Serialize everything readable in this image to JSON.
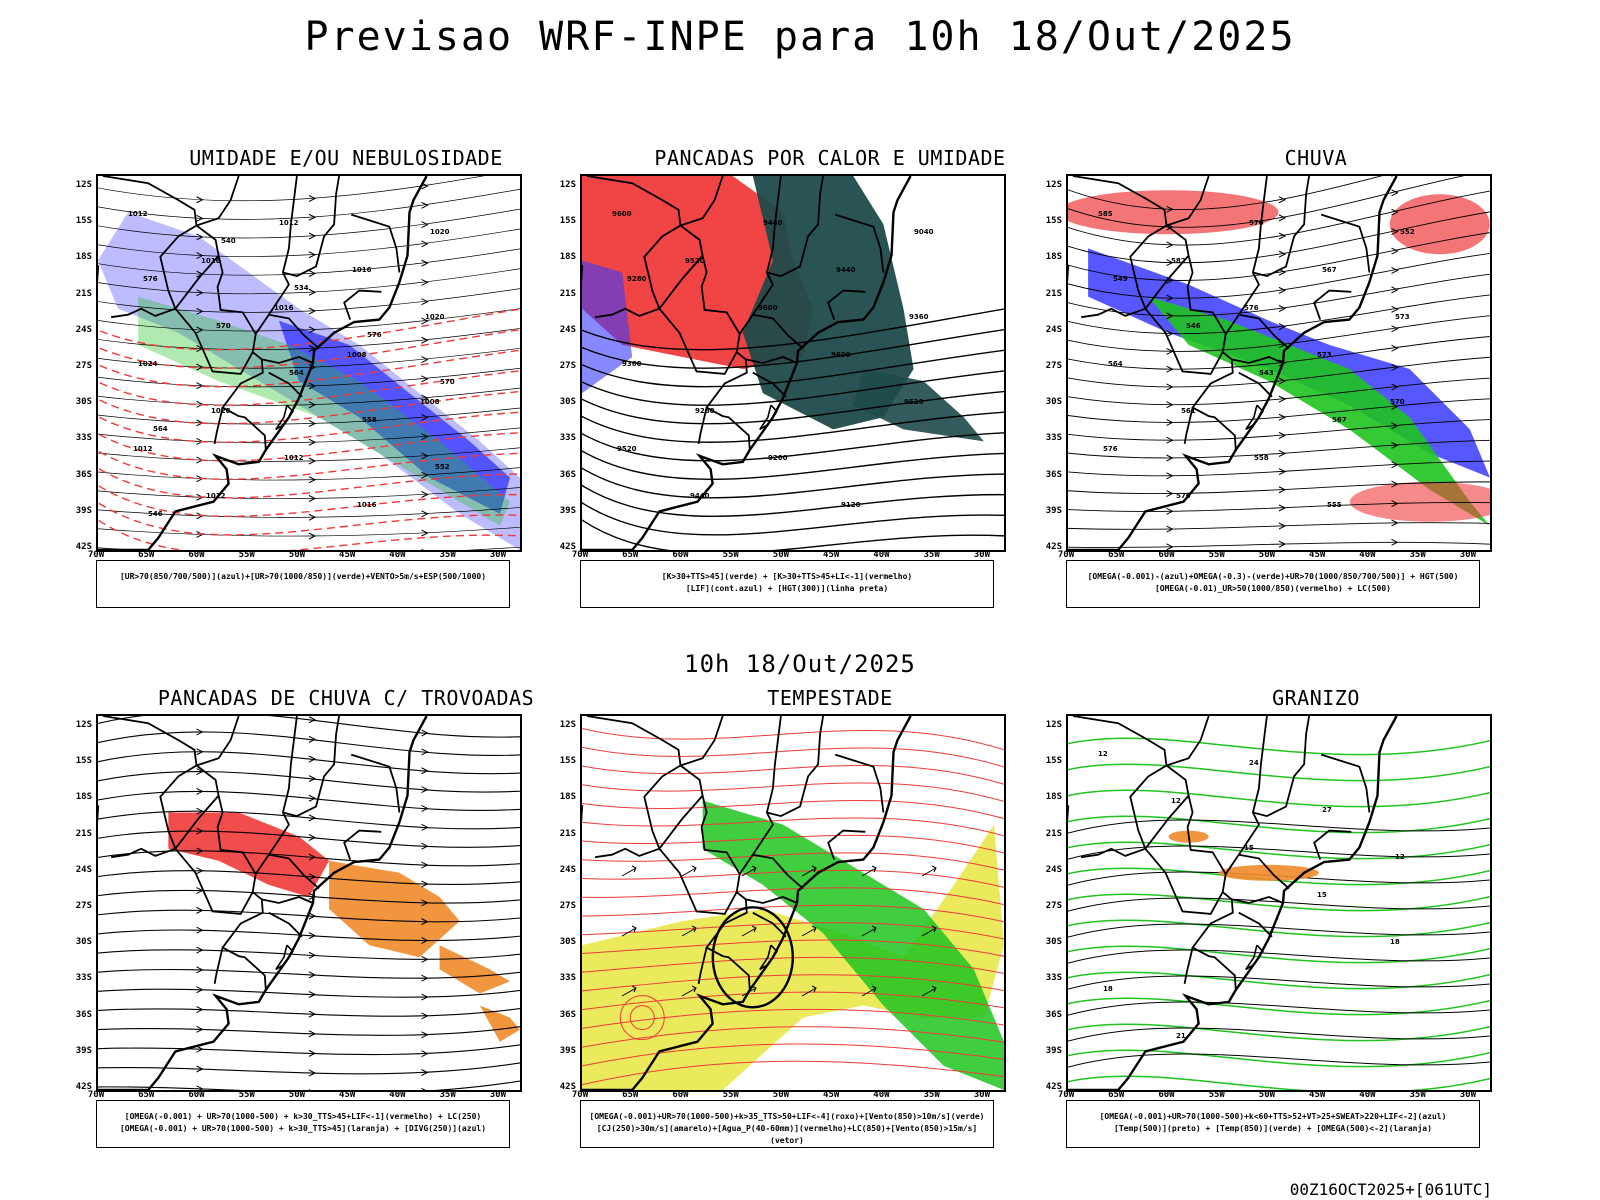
{
  "page": {
    "title": "Previsao WRF-INPE  para 10h 18/Out/2025",
    "mid_time": "10h 18/Out/2025",
    "stamp": "00Z16OCT2025+[061UTC]"
  },
  "axes": {
    "lat_ticks": [
      "12S",
      "15S",
      "18S",
      "21S",
      "24S",
      "27S",
      "30S",
      "33S",
      "36S",
      "39S",
      "42S"
    ],
    "lon_ticks": [
      "70W",
      "65W",
      "60W",
      "55W",
      "50W",
      "45W",
      "40W",
      "35W",
      "30W"
    ]
  },
  "colors": {
    "red": "#f03a3a",
    "green": "#1fc41f",
    "blue": "#3a3aff",
    "lightblue": "#b0b0ff",
    "midblue": "#6a6aff",
    "darkteal": "#1f4a4a",
    "orange": "#f08a2a",
    "yellow": "#e6e640",
    "black": "#000000"
  },
  "panels": [
    {
      "title": "UMIDADE E/OU NEBULOSIDADE",
      "legend": [
        "[UR>70(850/700/500)](azul)+[UR>70(1000/850)](verde)+VENTO>5m/s+ESP(500/1000)"
      ],
      "contour_labels": [
        "1012",
        "1016",
        "1016",
        "1008",
        "1008",
        "1012",
        "1012",
        "1012",
        "1016",
        "1020",
        "1024",
        "1028",
        "1012",
        "1016",
        "1020",
        "576",
        "570",
        "564",
        "558",
        "552",
        "546",
        "540",
        "534",
        "576",
        "570",
        "564"
      ]
    },
    {
      "title": "PANCADAS POR CALOR E UMIDADE",
      "legend": [
        "[K>30+TTS>45](verde) + [K>30+TTS>45+LI<-1](vermelho)",
        "[LIF](cont.azul) + [HGT(300)](linha preta)"
      ],
      "contour_labels": [
        "9600",
        "9520",
        "9600",
        "9600",
        "9520",
        "9520",
        "9440",
        "9440",
        "9440",
        "9360",
        "9360",
        "9280",
        "9200",
        "9120",
        "9040",
        "9280"
      ]
    },
    {
      "title": "CHUVA",
      "legend": [
        "[OMEGA(-0.001)-(azul)+OMEGA(-0.3)-(verde)+UR>70(1000/850/700/500)] + HGT(500)",
        "[OMEGA(-0.01)_UR>50(1000/850)(vermelho) + LC(500)"
      ],
      "contour_labels": [
        "585",
        "582",
        "576",
        "573",
        "570",
        "576",
        "576",
        "570",
        "567",
        "573",
        "564",
        "561",
        "558",
        "555",
        "552",
        "549",
        "546",
        "543",
        "567"
      ]
    },
    {
      "title": "PANCADAS DE CHUVA C/ TROVOADAS",
      "legend": [
        "[OMEGA(-0.001) + UR>70(1000-500) + k>30_TTS>45+LIF<-1](vermelho) + LC(250)",
        "[OMEGA(-0.001) + UR>70(1000-500) + k>30_TTS>45](laranja) + [DIVG(250)](azul)"
      ],
      "contour_labels": []
    },
    {
      "title": "TEMPESTADE",
      "legend": [
        "[OMEGA(-0.001)+UR>70(1000-500)+k>35_TTS>50+LIF<-4](roxo)+[Vento(850)>10m/s](verde)",
        "[CJ(250)>30m/s](amarelo)+[Agua_P(40-60mm)](vermelho)+LC(850)+[Vento(850)>15m/s](vetor)"
      ],
      "contour_labels": []
    },
    {
      "title": "GRANIZO",
      "legend": [
        "[OMEGA(-0.001)+UR>70(1000-500)+k<60+TTS>52+VT>25+SWEAT>220+LIF<-2](azul)",
        "[Temp(500)](preto) + [Temp(850)](verde) + [OMEGA(500)<-2](laranja)"
      ],
      "contour_labels": [
        "12",
        "12",
        "15",
        "15",
        "18",
        "18",
        "21",
        "24",
        "27",
        "12"
      ]
    }
  ]
}
